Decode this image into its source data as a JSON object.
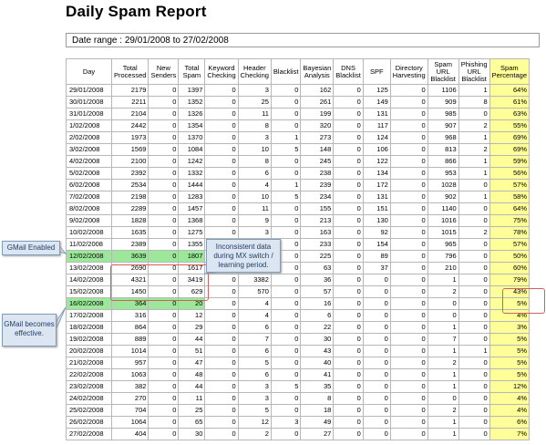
{
  "title": "Daily Spam Report",
  "date_range": "Date range : 29/01/2008 to 27/02/2008",
  "columns": [
    "Day",
    "Total Processed",
    "New Senders",
    "Total Spam",
    "Keyword Checking",
    "Header Checking",
    "Blacklist",
    "Bayesian Analysis",
    "DNS Blacklist",
    "SPF",
    "Directory Harvesting",
    "Spam URL Blacklist",
    "Phishing URL Blacklist",
    "Spam Percentage"
  ],
  "rows": [
    [
      "29/01/2008",
      "2179",
      "0",
      "1397",
      "0",
      "3",
      "0",
      "162",
      "0",
      "125",
      "0",
      "1106",
      "1",
      "64%"
    ],
    [
      "30/01/2008",
      "2211",
      "0",
      "1352",
      "0",
      "25",
      "0",
      "261",
      "0",
      "149",
      "0",
      "909",
      "8",
      "61%"
    ],
    [
      "31/01/2008",
      "2104",
      "0",
      "1326",
      "0",
      "11",
      "0",
      "199",
      "0",
      "131",
      "0",
      "985",
      "0",
      "63%"
    ],
    [
      "1/02/2008",
      "2442",
      "0",
      "1354",
      "0",
      "8",
      "0",
      "320",
      "0",
      "117",
      "0",
      "907",
      "2",
      "55%"
    ],
    [
      "2/02/2008",
      "1973",
      "0",
      "1370",
      "0",
      "3",
      "1",
      "273",
      "0",
      "124",
      "0",
      "968",
      "1",
      "69%"
    ],
    [
      "3/02/2008",
      "1569",
      "0",
      "1084",
      "0",
      "10",
      "5",
      "148",
      "0",
      "106",
      "0",
      "813",
      "2",
      "69%"
    ],
    [
      "4/02/2008",
      "2100",
      "0",
      "1242",
      "0",
      "8",
      "0",
      "245",
      "0",
      "122",
      "0",
      "866",
      "1",
      "59%"
    ],
    [
      "5/02/2008",
      "2392",
      "0",
      "1332",
      "0",
      "6",
      "0",
      "238",
      "0",
      "134",
      "0",
      "953",
      "1",
      "56%"
    ],
    [
      "6/02/2008",
      "2534",
      "0",
      "1444",
      "0",
      "4",
      "1",
      "239",
      "0",
      "172",
      "0",
      "1028",
      "0",
      "57%"
    ],
    [
      "7/02/2008",
      "2198",
      "0",
      "1283",
      "0",
      "10",
      "5",
      "234",
      "0",
      "131",
      "0",
      "902",
      "1",
      "58%"
    ],
    [
      "8/02/2008",
      "2289",
      "0",
      "1457",
      "0",
      "11",
      "0",
      "155",
      "0",
      "151",
      "0",
      "1140",
      "0",
      "64%"
    ],
    [
      "9/02/2008",
      "1828",
      "0",
      "1368",
      "0",
      "9",
      "0",
      "213",
      "0",
      "130",
      "0",
      "1016",
      "0",
      "75%"
    ],
    [
      "10/02/2008",
      "1635",
      "0",
      "1275",
      "0",
      "3",
      "0",
      "163",
      "0",
      "92",
      "0",
      "1015",
      "2",
      "78%"
    ],
    [
      "11/02/2008",
      "2389",
      "0",
      "1355",
      "0",
      "4",
      "0",
      "233",
      "0",
      "154",
      "0",
      "965",
      "0",
      "57%"
    ],
    [
      "12/02/2008",
      "3639",
      "0",
      "1807",
      "0",
      "0",
      "0",
      "225",
      "0",
      "89",
      "0",
      "796",
      "0",
      "50%"
    ],
    [
      "13/02/2008",
      "2690",
      "0",
      "1617",
      "0",
      "1307",
      "0",
      "63",
      "0",
      "37",
      "0",
      "210",
      "0",
      "60%"
    ],
    [
      "14/02/2008",
      "4321",
      "0",
      "3419",
      "0",
      "3382",
      "0",
      "36",
      "0",
      "0",
      "0",
      "1",
      "0",
      "79%"
    ],
    [
      "15/02/2008",
      "1450",
      "0",
      "629",
      "0",
      "570",
      "0",
      "57",
      "0",
      "0",
      "0",
      "2",
      "0",
      "43%"
    ],
    [
      "16/02/2008",
      "364",
      "0",
      "20",
      "0",
      "4",
      "0",
      "16",
      "0",
      "0",
      "0",
      "0",
      "0",
      "5%"
    ],
    [
      "17/02/2008",
      "316",
      "0",
      "12",
      "0",
      "4",
      "0",
      "6",
      "0",
      "0",
      "0",
      "0",
      "0",
      "4%"
    ],
    [
      "18/02/2008",
      "864",
      "0",
      "29",
      "0",
      "6",
      "0",
      "22",
      "0",
      "0",
      "0",
      "1",
      "0",
      "3%"
    ],
    [
      "19/02/2008",
      "889",
      "0",
      "44",
      "0",
      "7",
      "0",
      "30",
      "0",
      "0",
      "0",
      "7",
      "0",
      "5%"
    ],
    [
      "20/02/2008",
      "1014",
      "0",
      "51",
      "0",
      "6",
      "0",
      "43",
      "0",
      "0",
      "0",
      "1",
      "1",
      "5%"
    ],
    [
      "21/02/2008",
      "957",
      "0",
      "47",
      "0",
      "5",
      "0",
      "40",
      "0",
      "0",
      "0",
      "2",
      "0",
      "5%"
    ],
    [
      "22/02/2008",
      "1063",
      "0",
      "48",
      "0",
      "6",
      "0",
      "41",
      "0",
      "0",
      "0",
      "1",
      "0",
      "5%"
    ],
    [
      "23/02/2008",
      "382",
      "0",
      "44",
      "0",
      "3",
      "5",
      "35",
      "0",
      "0",
      "0",
      "1",
      "0",
      "12%"
    ],
    [
      "24/02/2008",
      "270",
      "0",
      "11",
      "0",
      "3",
      "0",
      "8",
      "0",
      "0",
      "0",
      "0",
      "0",
      "4%"
    ],
    [
      "25/02/2008",
      "704",
      "0",
      "25",
      "0",
      "5",
      "0",
      "18",
      "0",
      "0",
      "0",
      "2",
      "0",
      "4%"
    ],
    [
      "26/02/2008",
      "1064",
      "0",
      "65",
      "0",
      "12",
      "3",
      "49",
      "0",
      "0",
      "0",
      "1",
      "0",
      "6%"
    ],
    [
      "27/02/2008",
      "404",
      "0",
      "30",
      "0",
      "2",
      "0",
      "27",
      "0",
      "0",
      "0",
      "1",
      "0",
      "7%"
    ]
  ],
  "annotations": {
    "gmail_enabled": "GMail Enabled",
    "gmail_effective": "GMail becomes effective.",
    "inconsistent": "Inconsistent data during MX switch / learning period."
  },
  "colors": {
    "highlight_green": "#9be89b",
    "percentage_column": "#ffff99",
    "callout_bg": "#dce6f3",
    "callout_border": "#7f9db9",
    "emphasis_box": "#d06060"
  }
}
